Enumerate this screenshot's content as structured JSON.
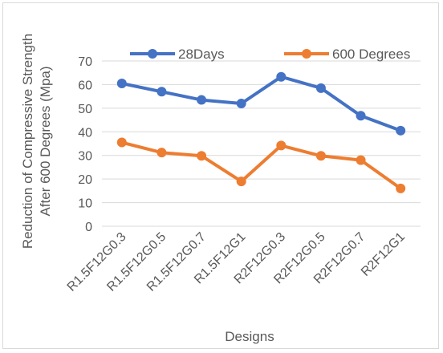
{
  "chart_data": {
    "type": "line",
    "title": "",
    "xlabel": "Designs",
    "ylabel": "Reduction of Compressive Strength After 600 Degrees (Mpa)",
    "ylabel_lines": [
      "Reduction of Compressive Strength",
      "After 600 Degrees (Mpa)"
    ],
    "categories": [
      "R1.5F12G0.3",
      "R1.5F12G0.5",
      "R1.5F12G0.7",
      "R1.5F12G1",
      "R2F12G0.3",
      "R2F12G0.5",
      "R2F12G0.7",
      "R2F12G1"
    ],
    "ylim": [
      0,
      70
    ],
    "yticks": [
      0,
      10,
      20,
      30,
      40,
      50,
      60,
      70
    ],
    "grid": "horizontal",
    "legend": "top",
    "series": [
      {
        "name": "28Days",
        "color": "#4472c4",
        "values": [
          60.5,
          57,
          53.5,
          52,
          63.3,
          58.5,
          46.8,
          40.5
        ]
      },
      {
        "name": "600 Degrees",
        "color": "#ed7d31",
        "values": [
          35.5,
          31.2,
          29.8,
          19,
          34.2,
          29.8,
          28,
          16
        ]
      }
    ]
  }
}
